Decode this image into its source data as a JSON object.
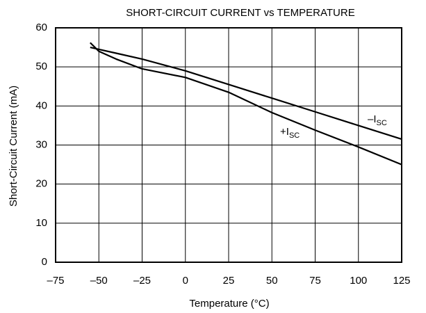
{
  "chart_data": {
    "type": "line",
    "title": "SHORT-CIRCUIT CURRENT vs TEMPERATURE",
    "x_label": "Temperature (°C)",
    "y_label": "Short-Circuit Current (mA)",
    "x": [
      -55,
      -50,
      -40,
      -25,
      0,
      25,
      50,
      75,
      100,
      125
    ],
    "series": [
      {
        "label": "–I",
        "label_sub": "SC",
        "color": "#000000",
        "values": [
          55,
          54.5,
          53.5,
          52,
          49,
          45.5,
          42,
          38.5,
          35,
          31.5
        ]
      },
      {
        "label": "+I",
        "label_sub": "SC",
        "color": "#000000",
        "values": [
          56.2,
          54,
          52,
          49.5,
          47.3,
          43.5,
          38.3,
          33.8,
          29.5,
          25
        ]
      }
    ],
    "xlim": [
      -75,
      125
    ],
    "ylim": [
      0,
      60
    ],
    "xticks": [
      {
        "value": -75,
        "label": "–75"
      },
      {
        "value": -50,
        "label": "–50"
      },
      {
        "value": -25,
        "label": "–25"
      },
      0,
      25,
      50,
      75,
      100,
      125
    ],
    "yticks": [
      0,
      10,
      20,
      30,
      40,
      50,
      60
    ],
    "grid": true
  }
}
